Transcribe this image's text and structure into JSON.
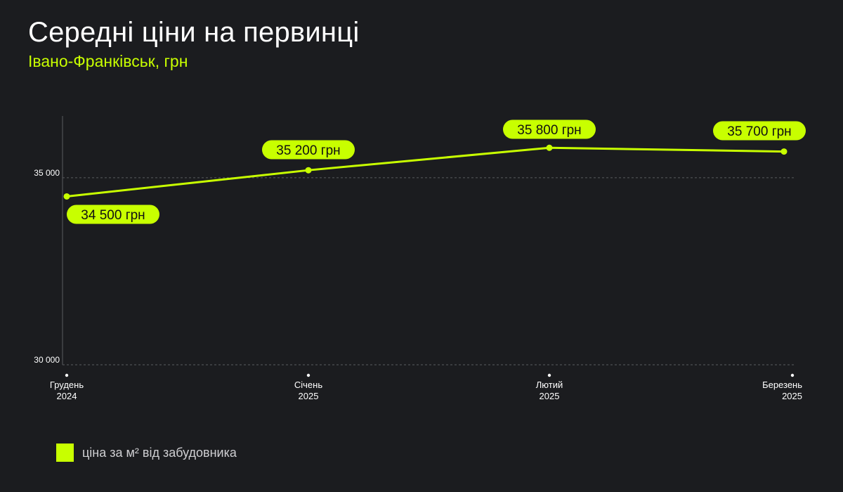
{
  "title": "Середні ціни на первинці",
  "subtitle": "Івано-Франківськ, грн",
  "legend": {
    "label": "ціна за м² від забудовника"
  },
  "colors": {
    "accent": "#c8ff00",
    "background": "#1b1c1f",
    "grid": "#5a5b5f",
    "axis_text": "#ffffff"
  },
  "chart_data": {
    "type": "line",
    "categories": [
      [
        "Грудень",
        "2024"
      ],
      [
        "Січень",
        "2025"
      ],
      [
        "Лютий",
        "2025"
      ],
      [
        "Березень",
        "2025"
      ]
    ],
    "series": [
      {
        "name": "ціна за м² від забудовника",
        "values": [
          34500,
          35200,
          35800,
          35700
        ]
      }
    ],
    "data_labels": [
      "34 500 грн",
      "35 200 грн",
      "35 800 грн",
      "35 700 грн"
    ],
    "yticks": [
      30000,
      35000
    ],
    "ytick_labels": [
      "30 000",
      "35 000"
    ],
    "ylim": [
      30000,
      36650
    ],
    "grid": true,
    "legend_position": "bottom-left"
  }
}
